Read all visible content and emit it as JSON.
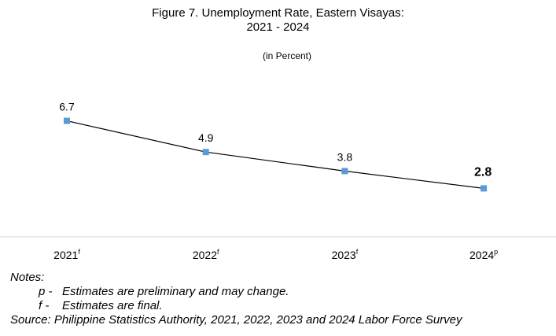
{
  "title_line1": "Figure 7. Unemployment Rate, Eastern Visayas:",
  "title_line2": "2021 - 2024",
  "subtitle": "(in Percent)",
  "chart_data": {
    "type": "line",
    "title": "Figure 7. Unemployment Rate, Eastern Visayas: 2021 - 2024",
    "subtitle": "(in Percent)",
    "categories": [
      "2021",
      "2022",
      "2023",
      "2024"
    ],
    "category_suffix": [
      "f",
      "f",
      "f",
      "p"
    ],
    "values": [
      6.7,
      4.9,
      3.8,
      2.8
    ],
    "data_labels": [
      "6.7",
      "4.9",
      "3.8",
      "2.8"
    ],
    "highlight_last_label": true,
    "line_color": "#000000",
    "marker_color": "#5b9bd5",
    "grid": false,
    "legend": "none",
    "ylim": [
      0,
      9
    ]
  },
  "notes": {
    "heading": "Notes:",
    "items": [
      {
        "key": "p -",
        "text": "Estimates are preliminary and may change."
      },
      {
        "key": "f -",
        "text": "Estimates are final."
      }
    ],
    "source": "Source: Philippine Statistics Authority, 2021, 2022, 2023 and 2024 Labor Force Survey"
  }
}
